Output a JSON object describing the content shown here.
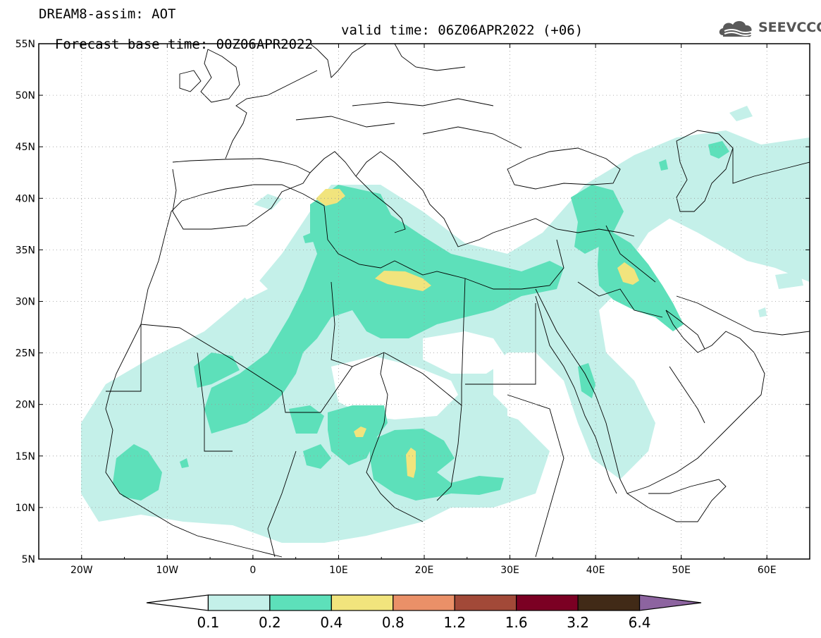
{
  "title": {
    "line1": "DREAM8-assim: AOT",
    "base_time": "Forecast base time: 00Z06APR2022",
    "valid_time": "valid time: 06Z06APR2022 (+06)"
  },
  "logo": {
    "text": "SEEVCCC",
    "icon": "cloud-logo-icon"
  },
  "map": {
    "lon_range": [
      -25,
      65
    ],
    "lat_range": [
      5,
      55
    ],
    "lat_labels": [
      "55N",
      "50N",
      "45N",
      "40N",
      "35N",
      "30N",
      "25N",
      "20N",
      "15N",
      "10N",
      "5N"
    ],
    "lon_labels": [
      "20W",
      "10W",
      "0",
      "10E",
      "20E",
      "30E",
      "40E",
      "50E",
      "60E"
    ],
    "gridlines": "dotted"
  },
  "colorbar": {
    "labels": [
      "0.1",
      "0.2",
      "0.4",
      "0.8",
      "1.2",
      "1.6",
      "3.2",
      "6.4"
    ],
    "colors": [
      "#ffffff",
      "#c4f0e9",
      "#5de0ba",
      "#f1e47d",
      "#ea9068",
      "#a24938",
      "#7b0023",
      "#412a17",
      "#8d64a0"
    ]
  }
}
